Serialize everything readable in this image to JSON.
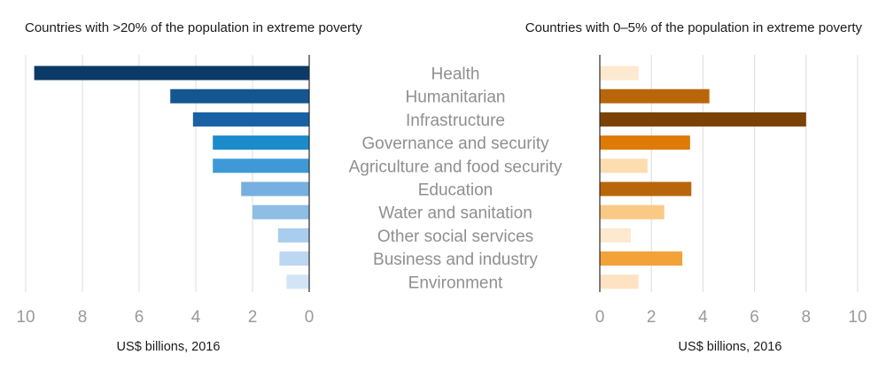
{
  "chart_data": [
    {
      "type": "bar",
      "orientation": "horizontal",
      "direction": "right-to-left",
      "title": "Countries with >20% of the population in extreme poverty",
      "xlabel": "US$ billions, 2016",
      "xlim": [
        0,
        10
      ],
      "xticks": [
        "0",
        "2",
        "4",
        "6",
        "8",
        "10"
      ],
      "grid": true,
      "categories": [
        "Health",
        "Humanitarian",
        "Infrastructure",
        "Governance and security",
        "Agriculture and food security",
        "Education",
        "Water and sanitation",
        "Other social services",
        "Business and industry",
        "Environment"
      ],
      "values": [
        9.7,
        4.9,
        4.1,
        3.4,
        3.4,
        2.4,
        2.0,
        1.1,
        1.05,
        0.8
      ],
      "colors": [
        "#0c3a67",
        "#14568f",
        "#1861a4",
        "#1c8bcc",
        "#3f99d6",
        "#76b0e0",
        "#8ebde6",
        "#a9cdee",
        "#bbd7f1",
        "#d3e4f6"
      ]
    },
    {
      "type": "bar",
      "orientation": "horizontal",
      "direction": "left-to-right",
      "title": "Countries with 0–5% of the population in extreme poverty",
      "xlabel": "US$ billions, 2016",
      "xlim": [
        0,
        10
      ],
      "xticks": [
        "0",
        "2",
        "4",
        "6",
        "8",
        "10"
      ],
      "grid": true,
      "categories": [
        "Health",
        "Humanitarian",
        "Infrastructure",
        "Governance and security",
        "Agriculture and food security",
        "Education",
        "Water and sanitation",
        "Other social services",
        "Business and industry",
        "Environment"
      ],
      "values": [
        1.5,
        4.25,
        8.0,
        3.5,
        1.85,
        3.55,
        2.5,
        1.2,
        3.2,
        1.5
      ],
      "colors": [
        "#fde9cf",
        "#b9660a",
        "#7a4206",
        "#dd7b06",
        "#fdddb0",
        "#b9660a",
        "#fbc986",
        "#fde9cf",
        "#f3a23a",
        "#fde3c2"
      ]
    }
  ]
}
